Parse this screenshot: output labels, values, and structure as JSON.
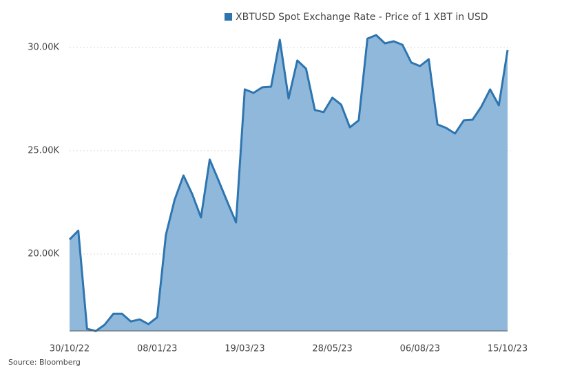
{
  "chart_data": {
    "type": "area",
    "categories": [
      "30/10/22",
      null,
      null,
      null,
      null,
      null,
      null,
      null,
      null,
      null,
      "08/01/23",
      null,
      null,
      null,
      null,
      null,
      null,
      null,
      null,
      null,
      "19/03/23",
      null,
      null,
      null,
      null,
      null,
      null,
      null,
      null,
      null,
      "28/05/23",
      null,
      null,
      null,
      null,
      null,
      null,
      null,
      null,
      null,
      "06/08/23",
      null,
      null,
      null,
      null,
      null,
      null,
      null,
      null,
      null,
      "15/10/23"
    ],
    "series": [
      {
        "name": "XBTUSD Spot Exchange Rate - Price of 1 XBT in USD",
        "color": "#2e75b0",
        "fill": "#8fb8db",
        "values": [
          20700,
          21130,
          16370,
          16270,
          16570,
          17100,
          17100,
          16730,
          16830,
          16600,
          16930,
          20930,
          22630,
          23800,
          22900,
          21770,
          24570,
          23570,
          22530,
          21530,
          27970,
          27800,
          28070,
          28100,
          30370,
          27530,
          29370,
          28970,
          26970,
          26870,
          27570,
          27230,
          26130,
          26470,
          30430,
          30600,
          30200,
          30300,
          30130,
          29270,
          29100,
          29430,
          26270,
          26100,
          25830,
          26470,
          26500,
          27130,
          27970,
          27200,
          29870
        ]
      }
    ],
    "ylim": [
      16270,
      31000
    ],
    "yticks": [
      {
        "value": 20000,
        "label": "20.00K"
      },
      {
        "value": 25000,
        "label": "25.00K"
      },
      {
        "value": 30000,
        "label": "30.00K"
      }
    ],
    "grid": true,
    "source": "Source: Bloomberg"
  }
}
